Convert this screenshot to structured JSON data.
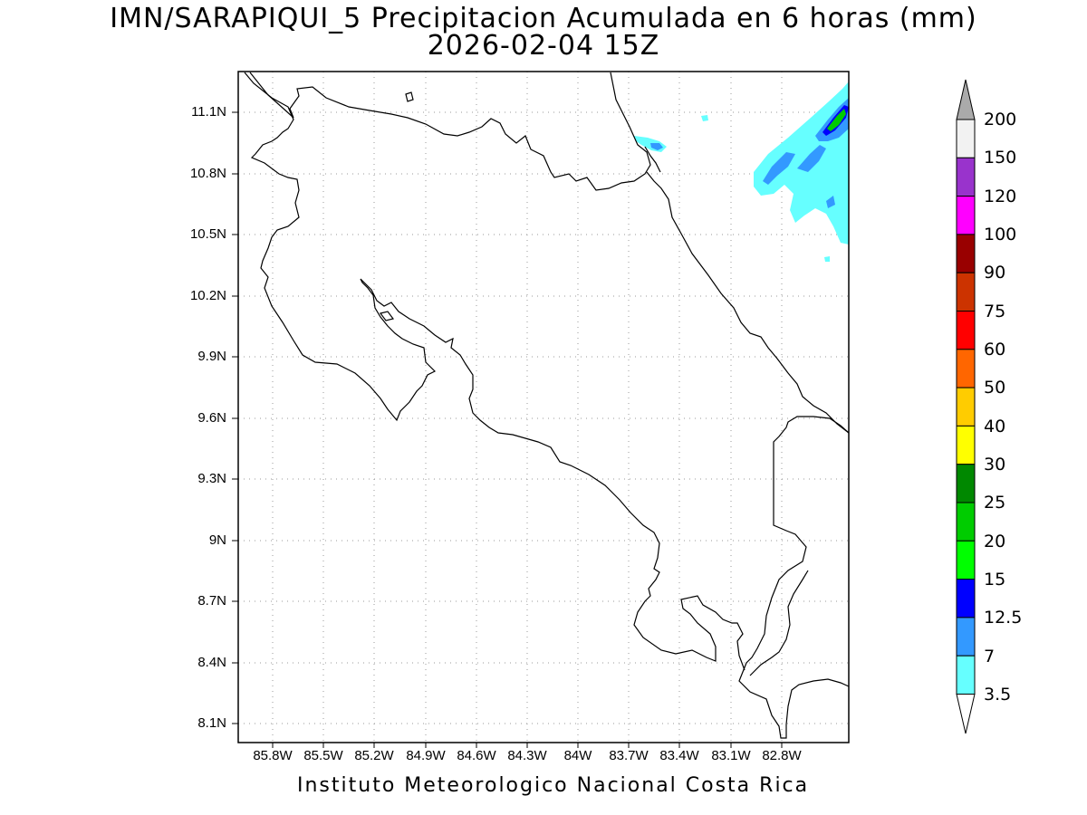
{
  "header": {
    "title_line1": "IMN/SARAPIQUI_5 Precipitacion Acumulada en 6 horas (mm)",
    "title_line2": "2026-02-04 15Z"
  },
  "footer": {
    "credit": "Instituto Meteorologico Nacional Costa Rica"
  },
  "map": {
    "lat_labels": [
      "11.1N",
      "10.8N",
      "10.5N",
      "10.2N",
      "9.9N",
      "9.6N",
      "9.3N",
      "9N",
      "8.7N",
      "8.4N",
      "8.1N"
    ],
    "lon_labels": [
      "85.8W",
      "85.5W",
      "85.2W",
      "84.9W",
      "84.6W",
      "84.3W",
      "84W",
      "83.7W",
      "83.4W",
      "83.1W",
      "82.8W"
    ],
    "grid": "dotted"
  },
  "colorbar": {
    "levels": [
      "200",
      "150",
      "120",
      "100",
      "90",
      "75",
      "60",
      "50",
      "40",
      "30",
      "25",
      "20",
      "15",
      "12.5",
      "7",
      "3.5"
    ],
    "colors": [
      "#f2f2f2",
      "#9933cc",
      "#ff00ff",
      "#990000",
      "#cc3300",
      "#ff0000",
      "#ff6600",
      "#ffcc00",
      "#ffff00",
      "#008800",
      "#00cc00",
      "#00ff00",
      "#0000ff",
      "#3399ff",
      "#66ffff"
    ],
    "overflow_color": "#aaaaaa"
  }
}
